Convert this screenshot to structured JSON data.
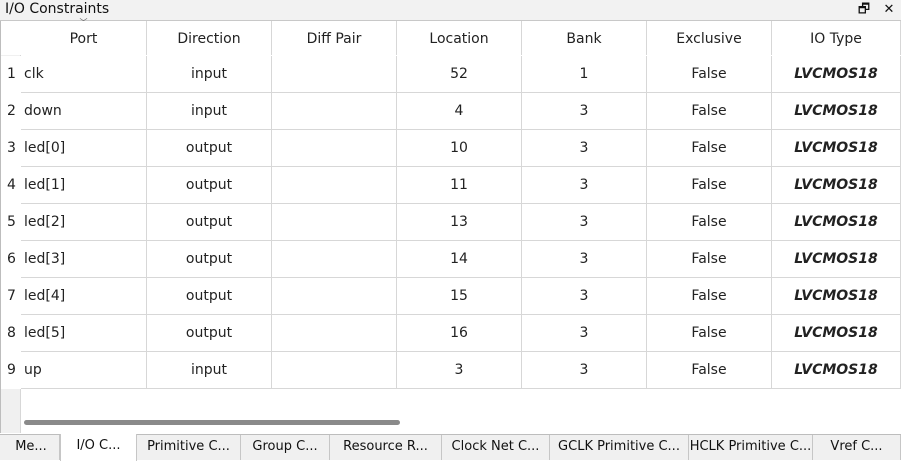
{
  "panel": {
    "title": "I/O Constraints",
    "restore_glyph": "🗗",
    "close_glyph": "✕"
  },
  "columns": [
    "Port",
    "Direction",
    "Diff Pair",
    "Location",
    "Bank",
    "Exclusive",
    "IO Type"
  ],
  "sort_indicator": "﹀",
  "rows": [
    {
      "num": "1",
      "port": "clk",
      "direction": "input",
      "diff_pair": "",
      "location": "52",
      "bank": "1",
      "exclusive": "False",
      "io_type": "LVCMOS18"
    },
    {
      "num": "2",
      "port": "down",
      "direction": "input",
      "diff_pair": "",
      "location": "4",
      "bank": "3",
      "exclusive": "False",
      "io_type": "LVCMOS18"
    },
    {
      "num": "3",
      "port": "led[0]",
      "direction": "output",
      "diff_pair": "",
      "location": "10",
      "bank": "3",
      "exclusive": "False",
      "io_type": "LVCMOS18"
    },
    {
      "num": "4",
      "port": "led[1]",
      "direction": "output",
      "diff_pair": "",
      "location": "11",
      "bank": "3",
      "exclusive": "False",
      "io_type": "LVCMOS18"
    },
    {
      "num": "5",
      "port": "led[2]",
      "direction": "output",
      "diff_pair": "",
      "location": "13",
      "bank": "3",
      "exclusive": "False",
      "io_type": "LVCMOS18"
    },
    {
      "num": "6",
      "port": "led[3]",
      "direction": "output",
      "diff_pair": "",
      "location": "14",
      "bank": "3",
      "exclusive": "False",
      "io_type": "LVCMOS18"
    },
    {
      "num": "7",
      "port": "led[4]",
      "direction": "output",
      "diff_pair": "",
      "location": "15",
      "bank": "3",
      "exclusive": "False",
      "io_type": "LVCMOS18"
    },
    {
      "num": "8",
      "port": "led[5]",
      "direction": "output",
      "diff_pair": "",
      "location": "16",
      "bank": "3",
      "exclusive": "False",
      "io_type": "LVCMOS18"
    },
    {
      "num": "9",
      "port": "up",
      "direction": "input",
      "diff_pair": "",
      "location": "3",
      "bank": "3",
      "exclusive": "False",
      "io_type": "LVCMOS18"
    }
  ],
  "tabs": [
    {
      "label": "Me...",
      "active": false
    },
    {
      "label": "I/O C...",
      "active": true
    },
    {
      "label": "Primitive C...",
      "active": false
    },
    {
      "label": "Group C...",
      "active": false
    },
    {
      "label": "Resource R...",
      "active": false
    },
    {
      "label": "Clock Net C...",
      "active": false
    },
    {
      "label": "GCLK Primitive C...",
      "active": false
    },
    {
      "label": "HCLK Primitive C...",
      "active": false
    },
    {
      "label": "Vref C...",
      "active": false
    }
  ]
}
